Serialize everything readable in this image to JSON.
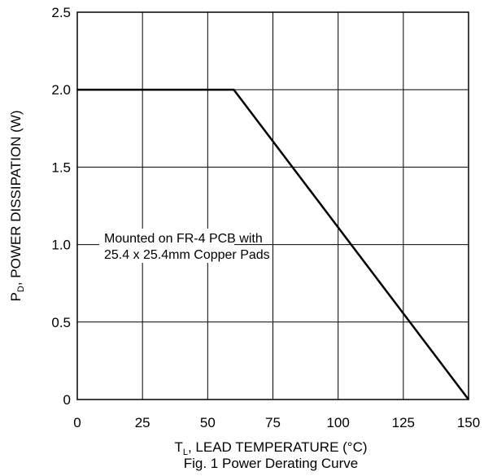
{
  "chart_data": {
    "type": "line",
    "title": "Fig. 1 Power Derating Curve",
    "xlabel": {
      "main": "T",
      "sub": "L",
      "rest": ", LEAD TEMPERATURE (°C)"
    },
    "ylabel": {
      "main": "P",
      "sub": "D",
      "rest": ", POWER DISSIPATION (W)"
    },
    "xlim": [
      0,
      150
    ],
    "ylim": [
      0,
      2.5
    ],
    "x_ticks": [
      0,
      25,
      50,
      75,
      100,
      125,
      150
    ],
    "y_ticks": [
      0,
      0.5,
      1.0,
      1.5,
      2.0,
      2.5
    ],
    "x_tick_labels": [
      "0",
      "25",
      "50",
      "75",
      "100",
      "125",
      "150"
    ],
    "y_tick_labels": [
      "0",
      "0.5",
      "1.0",
      "1.5",
      "2.0",
      "2.5"
    ],
    "grid": true,
    "series": [
      {
        "x": [
          0,
          60,
          150
        ],
        "y": [
          2.0,
          2.0,
          0
        ]
      }
    ],
    "annotation": {
      "lines": [
        "Mounted on FR-4 PCB with",
        "25.4 x 25.4mm Copper Pads"
      ]
    },
    "colors": {
      "line": "#000000",
      "grid": "#000000",
      "frame": "#000000"
    }
  }
}
